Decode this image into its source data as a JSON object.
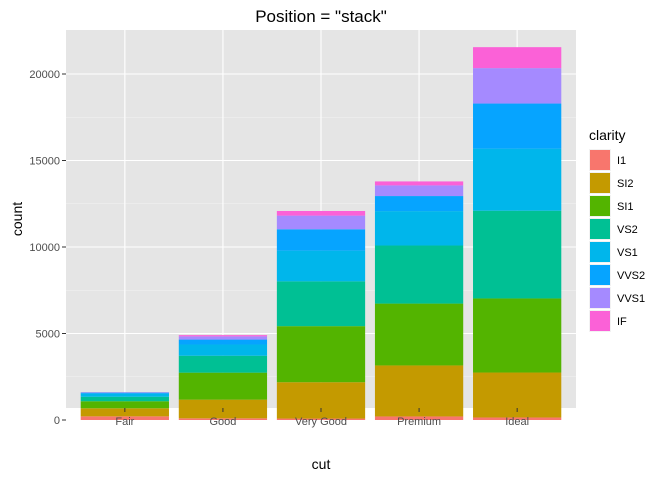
{
  "chart_data": {
    "type": "bar",
    "stacked": true,
    "title": "Position = \"stack\"",
    "xlabel": "cut",
    "ylabel": "count",
    "categories": [
      "Fair",
      "Good",
      "Very Good",
      "Premium",
      "Ideal"
    ],
    "ylim": [
      0,
      22000
    ],
    "yticks": [
      0,
      5000,
      10000,
      15000,
      20000
    ],
    "grid": true,
    "legend": {
      "title": "clarity",
      "position": "right"
    },
    "series": [
      {
        "name": "I1",
        "color": "#F8766D",
        "values": [
          210,
          96,
          84,
          205,
          146
        ]
      },
      {
        "name": "SI2",
        "color": "#C49A00",
        "values": [
          466,
          1081,
          2100,
          2949,
          2598
        ]
      },
      {
        "name": "SI1",
        "color": "#53B400",
        "values": [
          408,
          1560,
          3240,
          3575,
          4282
        ]
      },
      {
        "name": "VS2",
        "color": "#00C094",
        "values": [
          261,
          978,
          2591,
          3357,
          5071
        ]
      },
      {
        "name": "VS1",
        "color": "#00B6EB",
        "values": [
          170,
          648,
          1775,
          1989,
          3589
        ]
      },
      {
        "name": "VVS2",
        "color": "#06A4FF",
        "values": [
          69,
          286,
          1235,
          870,
          2606
        ]
      },
      {
        "name": "VVS1",
        "color": "#A58AFF",
        "values": [
          17,
          186,
          789,
          616,
          2047
        ]
      },
      {
        "name": "IF",
        "color": "#FB61D7",
        "values": [
          9,
          71,
          268,
          230,
          1212
        ]
      }
    ],
    "colors": {
      "panel": "#E5E5E5",
      "grid": "#FFFFFF",
      "I1": "#F8766D",
      "SI2": "#C08B00",
      "SI1": "#6BA300",
      "VS2": "#16B85A",
      "VS1": "#1AB8C0",
      "VVS2": "#1A98FF",
      "VVS1": "#B866FF",
      "IF": "#FF44CC"
    }
  }
}
